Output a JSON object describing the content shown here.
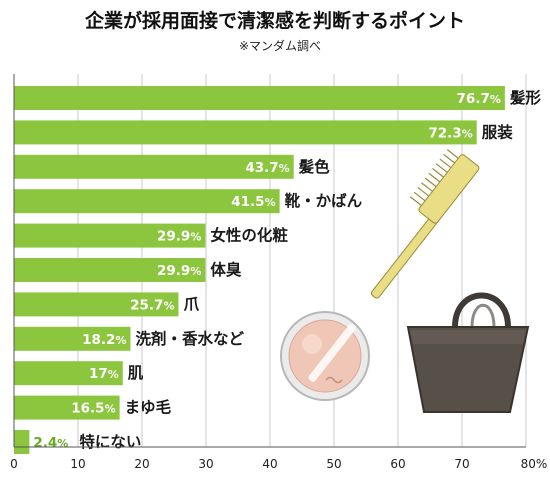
{
  "chart_data": {
    "type": "bar",
    "orientation": "horizontal",
    "title": "企業が採用面接で清潔感を判断するポイント",
    "subtitle": "※マンダム調べ",
    "unit": "%",
    "categories": [
      "髪形",
      "服装",
      "髪色",
      "靴・かばん",
      "女性の化粧",
      "体臭",
      "爪",
      "洗剤・香水など",
      "肌",
      "まゆ毛",
      "特にない"
    ],
    "values": [
      76.7,
      72.3,
      43.7,
      41.5,
      29.9,
      29.9,
      25.7,
      18.2,
      17,
      16.5,
      2.4
    ],
    "value_labels": [
      "76.7",
      "72.3",
      "43.7",
      "41.5",
      "29.9",
      "29.9",
      "25.7",
      "18.2",
      "17",
      "16.5",
      "2.4"
    ],
    "xlim": [
      0,
      80
    ],
    "xticks": [
      "0",
      "10",
      "20",
      "30",
      "40",
      "50",
      "60",
      "70",
      "80%"
    ],
    "bar_color": "#8cc63f",
    "grid": true,
    "decorations": [
      "comb-icon",
      "compact-icon",
      "handbag-icon"
    ]
  }
}
